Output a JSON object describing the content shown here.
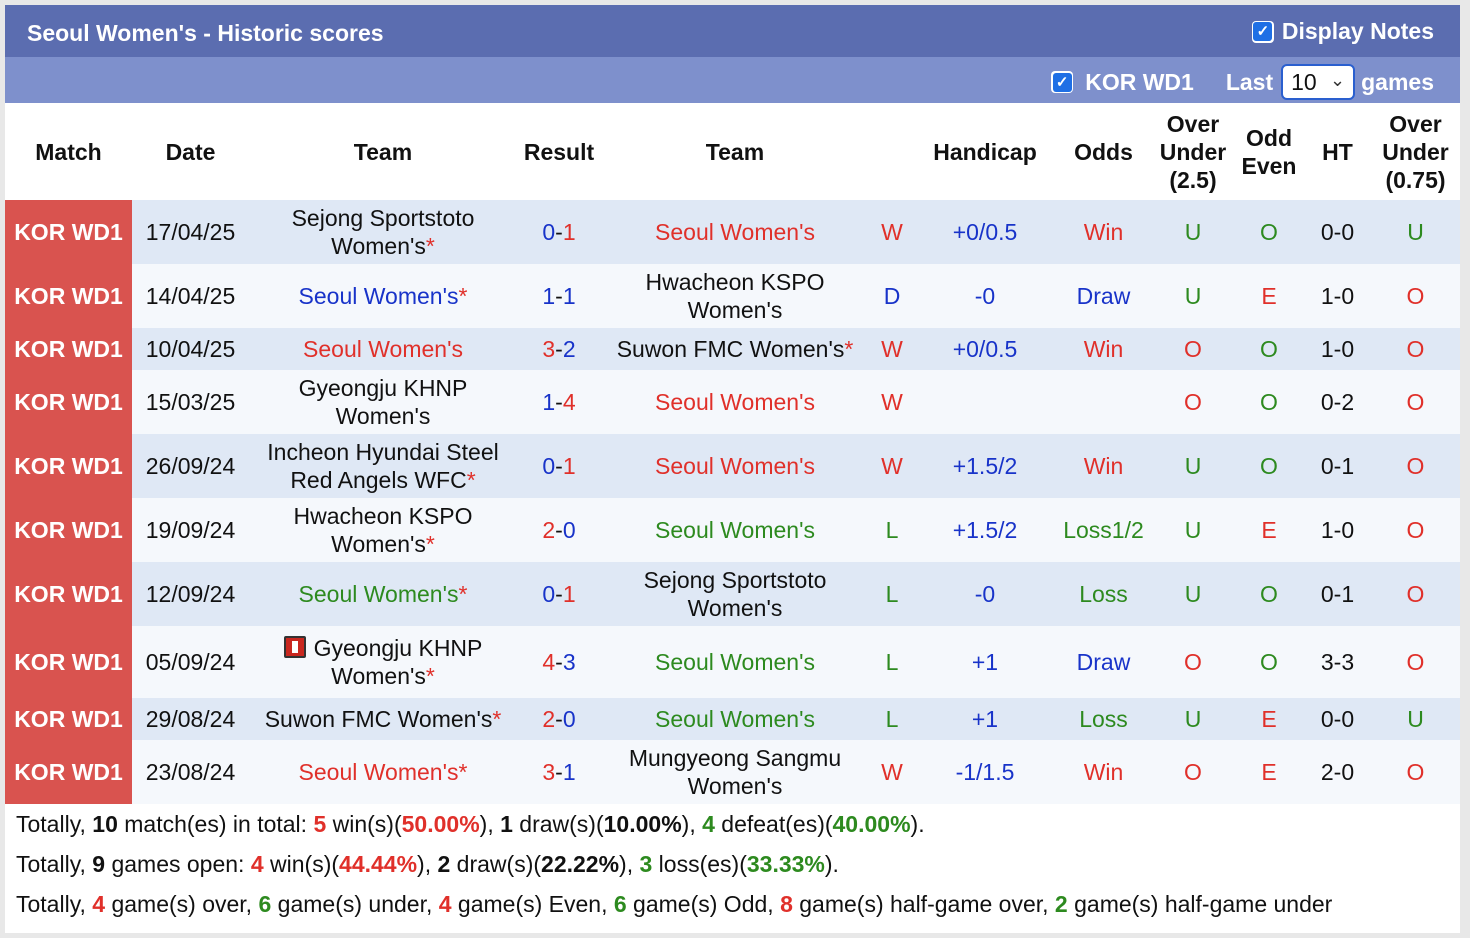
{
  "header": {
    "title": "Seoul Women's - Historic scores",
    "display_notes_label": "Display Notes",
    "league_filter_label": "KOR WD1",
    "last_label": "Last",
    "last_value": "10",
    "games_label": "games"
  },
  "columns": {
    "match": "Match",
    "date": "Date",
    "team": "Team",
    "result": "Result",
    "team2": "Team",
    "handicap": "Handicap",
    "odds": "Odds",
    "ou_line1": "Over",
    "ou_line2": "Under",
    "ou_line3": "(2.5)",
    "oe_line1": "Odd",
    "oe_line2": "Even",
    "ht": "HT",
    "ou2_line1": "Over",
    "ou2_line2": "Under",
    "ou2_line3": "(0.75)"
  },
  "rows": [
    {
      "league": "KOR WD1",
      "date": "17/04/25",
      "home": "Sejong Sportstoto Women's",
      "home_star": true,
      "home_color": "black",
      "home_icon": false,
      "score_h": "0",
      "score_a": "1",
      "h_color": "blue",
      "a_color": "red",
      "away": "Seoul Women's",
      "away_star": false,
      "away_color": "red",
      "wdl": "W",
      "wdl_color": "red",
      "hcp": "+0/0.5",
      "odds": "Win",
      "odds_color": "red",
      "ou": "U",
      "ou_color": "green",
      "oe": "O",
      "oe_color": "green",
      "ht": "0-0",
      "ou2": "U",
      "ou2_color": "green"
    },
    {
      "league": "KOR WD1",
      "date": "14/04/25",
      "home": "Seoul Women's",
      "home_star": true,
      "home_color": "blue",
      "home_icon": false,
      "score_h": "1",
      "score_a": "1",
      "h_color": "blue",
      "a_color": "blue",
      "away": "Hwacheon KSPO Women's",
      "away_star": false,
      "away_color": "black",
      "wdl": "D",
      "wdl_color": "blue",
      "hcp": "-0",
      "odds": "Draw",
      "odds_color": "blue",
      "ou": "U",
      "ou_color": "green",
      "oe": "E",
      "oe_color": "red",
      "ht": "1-0",
      "ou2": "O",
      "ou2_color": "red"
    },
    {
      "league": "KOR WD1",
      "date": "10/04/25",
      "home": "Seoul Women's",
      "home_star": false,
      "home_color": "red",
      "home_icon": false,
      "score_h": "3",
      "score_a": "2",
      "h_color": "red",
      "a_color": "blue",
      "away": "Suwon FMC Women's",
      "away_star": true,
      "away_color": "black",
      "wdl": "W",
      "wdl_color": "red",
      "hcp": "+0/0.5",
      "odds": "Win",
      "odds_color": "red",
      "ou": "O",
      "ou_color": "red",
      "oe": "O",
      "oe_color": "green",
      "ht": "1-0",
      "ou2": "O",
      "ou2_color": "red"
    },
    {
      "league": "KOR WD1",
      "date": "15/03/25",
      "home": "Gyeongju KHNP Women's",
      "home_star": false,
      "home_color": "black",
      "home_icon": false,
      "score_h": "1",
      "score_a": "4",
      "h_color": "blue",
      "a_color": "red",
      "away": "Seoul Women's",
      "away_star": false,
      "away_color": "red",
      "wdl": "W",
      "wdl_color": "red",
      "hcp": "",
      "odds": "",
      "odds_color": "red",
      "ou": "O",
      "ou_color": "red",
      "oe": "O",
      "oe_color": "green",
      "ht": "0-2",
      "ou2": "O",
      "ou2_color": "red"
    },
    {
      "league": "KOR WD1",
      "date": "26/09/24",
      "home": "Incheon Hyundai Steel Red Angels WFC",
      "home_star": true,
      "home_color": "black",
      "home_icon": false,
      "score_h": "0",
      "score_a": "1",
      "h_color": "blue",
      "a_color": "red",
      "away": "Seoul Women's",
      "away_star": false,
      "away_color": "red",
      "wdl": "W",
      "wdl_color": "red",
      "hcp": "+1.5/2",
      "odds": "Win",
      "odds_color": "red",
      "ou": "U",
      "ou_color": "green",
      "oe": "O",
      "oe_color": "green",
      "ht": "0-1",
      "ou2": "O",
      "ou2_color": "red"
    },
    {
      "league": "KOR WD1",
      "date": "19/09/24",
      "home": "Hwacheon KSPO Women's",
      "home_star": true,
      "home_color": "black",
      "home_icon": false,
      "score_h": "2",
      "score_a": "0",
      "h_color": "red",
      "a_color": "blue",
      "away": "Seoul Women's",
      "away_star": false,
      "away_color": "green",
      "wdl": "L",
      "wdl_color": "green",
      "hcp": "+1.5/2",
      "odds": "Loss1/2",
      "odds_color": "green",
      "ou": "U",
      "ou_color": "green",
      "oe": "E",
      "oe_color": "red",
      "ht": "1-0",
      "ou2": "O",
      "ou2_color": "red"
    },
    {
      "league": "KOR WD1",
      "date": "12/09/24",
      "home": "Seoul Women's",
      "home_star": true,
      "home_color": "green",
      "home_icon": false,
      "score_h": "0",
      "score_a": "1",
      "h_color": "blue",
      "a_color": "red",
      "away": "Sejong Sportstoto Women's",
      "away_star": false,
      "away_color": "black",
      "wdl": "L",
      "wdl_color": "green",
      "hcp": "-0",
      "odds": "Loss",
      "odds_color": "green",
      "ou": "U",
      "ou_color": "green",
      "oe": "O",
      "oe_color": "green",
      "ht": "0-1",
      "ou2": "O",
      "ou2_color": "red"
    },
    {
      "league": "KOR WD1",
      "date": "05/09/24",
      "home": "Gyeongju KHNP Women's",
      "home_star": true,
      "home_color": "black",
      "home_icon": true,
      "score_h": "4",
      "score_a": "3",
      "h_color": "red",
      "a_color": "blue",
      "away": "Seoul Women's",
      "away_star": false,
      "away_color": "green",
      "wdl": "L",
      "wdl_color": "green",
      "hcp": "+1",
      "odds": "Draw",
      "odds_color": "blue",
      "ou": "O",
      "ou_color": "red",
      "oe": "O",
      "oe_color": "green",
      "ht": "3-3",
      "ou2": "O",
      "ou2_color": "red"
    },
    {
      "league": "KOR WD1",
      "date": "29/08/24",
      "home": "Suwon FMC Women's",
      "home_star": true,
      "home_color": "black",
      "home_icon": false,
      "score_h": "2",
      "score_a": "0",
      "h_color": "red",
      "a_color": "blue",
      "away": "Seoul Women's",
      "away_star": false,
      "away_color": "green",
      "wdl": "L",
      "wdl_color": "green",
      "hcp": "+1",
      "odds": "Loss",
      "odds_color": "green",
      "ou": "U",
      "ou_color": "green",
      "oe": "E",
      "oe_color": "red",
      "ht": "0-0",
      "ou2": "U",
      "ou2_color": "green"
    },
    {
      "league": "KOR WD1",
      "date": "23/08/24",
      "home": "Seoul Women's",
      "home_star": true,
      "home_color": "red",
      "home_icon": false,
      "score_h": "3",
      "score_a": "1",
      "h_color": "red",
      "a_color": "blue",
      "away": "Mungyeong Sangmu Women's",
      "away_star": false,
      "away_color": "black",
      "wdl": "W",
      "wdl_color": "red",
      "hcp": "-1/1.5",
      "odds": "Win",
      "odds_color": "red",
      "ou": "O",
      "ou_color": "red",
      "oe": "E",
      "oe_color": "red",
      "ht": "2-0",
      "ou2": "O",
      "ou2_color": "red"
    }
  ],
  "summary": {
    "line1": [
      {
        "t": "Totally, ",
        "c": ""
      },
      {
        "t": "10",
        "c": "b"
      },
      {
        "t": " match(es) in total: ",
        "c": ""
      },
      {
        "t": "5",
        "c": "red b"
      },
      {
        "t": " win(s)(",
        "c": ""
      },
      {
        "t": "50.00%",
        "c": "red b"
      },
      {
        "t": "), ",
        "c": ""
      },
      {
        "t": "1",
        "c": "blue b"
      },
      {
        "t": " draw(s)(",
        "c": ""
      },
      {
        "t": "10.00%",
        "c": "blue b"
      },
      {
        "t": "), ",
        "c": ""
      },
      {
        "t": "4",
        "c": "green b"
      },
      {
        "t": " defeat(es)(",
        "c": ""
      },
      {
        "t": "40.00%",
        "c": "green b"
      },
      {
        "t": ").",
        "c": ""
      }
    ],
    "line2": [
      {
        "t": "Totally, ",
        "c": ""
      },
      {
        "t": "9",
        "c": "b"
      },
      {
        "t": " games open: ",
        "c": ""
      },
      {
        "t": "4",
        "c": "red b"
      },
      {
        "t": " win(s)(",
        "c": ""
      },
      {
        "t": "44.44%",
        "c": "red b"
      },
      {
        "t": "), ",
        "c": ""
      },
      {
        "t": "2",
        "c": "blue b"
      },
      {
        "t": " draw(s)(",
        "c": ""
      },
      {
        "t": "22.22%",
        "c": "blue b"
      },
      {
        "t": "), ",
        "c": ""
      },
      {
        "t": "3",
        "c": "green b"
      },
      {
        "t": " loss(es)(",
        "c": ""
      },
      {
        "t": "33.33%",
        "c": "green b"
      },
      {
        "t": ").",
        "c": ""
      }
    ],
    "line3": [
      {
        "t": "Totally, ",
        "c": ""
      },
      {
        "t": "4",
        "c": "red b"
      },
      {
        "t": " game(s) over, ",
        "c": ""
      },
      {
        "t": "6",
        "c": "green b"
      },
      {
        "t": " game(s) under, ",
        "c": ""
      },
      {
        "t": "4",
        "c": "red b"
      },
      {
        "t": " game(s) Even, ",
        "c": ""
      },
      {
        "t": "6",
        "c": "green b"
      },
      {
        "t": " game(s) Odd, ",
        "c": ""
      },
      {
        "t": "8",
        "c": "red b"
      },
      {
        "t": " game(s) half-game over, ",
        "c": ""
      },
      {
        "t": "2",
        "c": "green b"
      },
      {
        "t": " game(s) half-game under",
        "c": ""
      }
    ]
  }
}
